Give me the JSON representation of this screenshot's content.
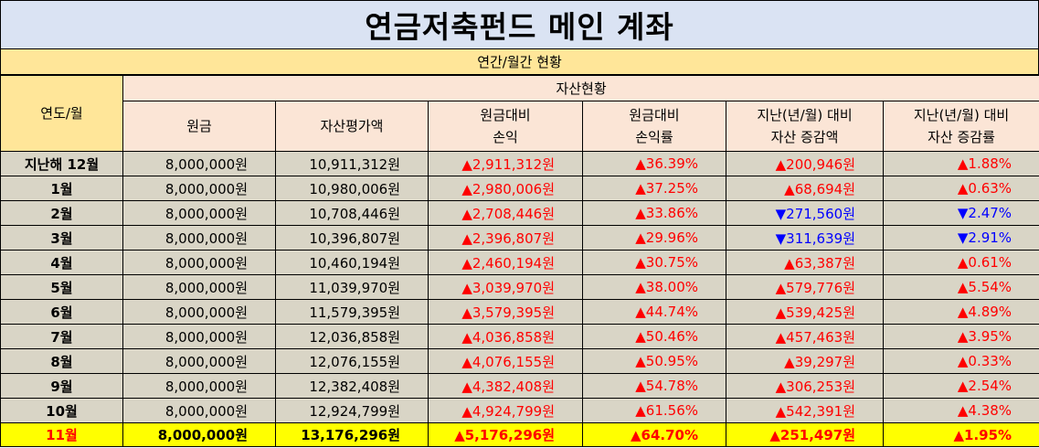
{
  "title": "연금저축펀드 메인 계좌",
  "subtitle": "연간/월간 현황",
  "header": {
    "year_month": "연도/월",
    "asset_status": "자산현황",
    "columns": [
      {
        "line1": "원금",
        "line2": ""
      },
      {
        "line1": "자산평가액",
        "line2": ""
      },
      {
        "line1": "원금대비",
        "line2": "손익"
      },
      {
        "line1": "원금대비",
        "line2": "손익률"
      },
      {
        "line1": "지난(년/월) 대비",
        "line2": "자산 증감액"
      },
      {
        "line1": "지난(년/월) 대비",
        "line2": "자산 증감률"
      }
    ]
  },
  "rows": [
    {
      "label": "지난해 12월",
      "principal": "8,000,000원",
      "valuation": "10,911,312원",
      "pl": "▲2,911,312원",
      "pl_rate": "▲36.39%",
      "change": "▲200,946원",
      "change_rate": "▲1.88%",
      "change_dir": "up"
    },
    {
      "label": "1월",
      "principal": "8,000,000원",
      "valuation": "10,980,006원",
      "pl": "▲2,980,006원",
      "pl_rate": "▲37.25%",
      "change": "▲68,694원",
      "change_rate": "▲0.63%",
      "change_dir": "up"
    },
    {
      "label": "2월",
      "principal": "8,000,000원",
      "valuation": "10,708,446원",
      "pl": "▲2,708,446원",
      "pl_rate": "▲33.86%",
      "change": "▼271,560원",
      "change_rate": "▼2.47%",
      "change_dir": "down"
    },
    {
      "label": "3월",
      "principal": "8,000,000원",
      "valuation": "10,396,807원",
      "pl": "▲2,396,807원",
      "pl_rate": "▲29.96%",
      "change": "▼311,639원",
      "change_rate": "▼2.91%",
      "change_dir": "down"
    },
    {
      "label": "4월",
      "principal": "8,000,000원",
      "valuation": "10,460,194원",
      "pl": "▲2,460,194원",
      "pl_rate": "▲30.75%",
      "change": "▲63,387원",
      "change_rate": "▲0.61%",
      "change_dir": "up"
    },
    {
      "label": "5월",
      "principal": "8,000,000원",
      "valuation": "11,039,970원",
      "pl": "▲3,039,970원",
      "pl_rate": "▲38.00%",
      "change": "▲579,776원",
      "change_rate": "▲5.54%",
      "change_dir": "up"
    },
    {
      "label": "6월",
      "principal": "8,000,000원",
      "valuation": "11,579,395원",
      "pl": "▲3,579,395원",
      "pl_rate": "▲44.74%",
      "change": "▲539,425원",
      "change_rate": "▲4.89%",
      "change_dir": "up"
    },
    {
      "label": "7월",
      "principal": "8,000,000원",
      "valuation": "12,036,858원",
      "pl": "▲4,036,858원",
      "pl_rate": "▲50.46%",
      "change": "▲457,463원",
      "change_rate": "▲3.95%",
      "change_dir": "up"
    },
    {
      "label": "8월",
      "principal": "8,000,000원",
      "valuation": "12,076,155원",
      "pl": "▲4,076,155원",
      "pl_rate": "▲50.95%",
      "change": "▲39,297원",
      "change_rate": "▲0.33%",
      "change_dir": "up"
    },
    {
      "label": "9월",
      "principal": "8,000,000원",
      "valuation": "12,382,408원",
      "pl": "▲4,382,408원",
      "pl_rate": "▲54.78%",
      "change": "▲306,253원",
      "change_rate": "▲2.54%",
      "change_dir": "up"
    },
    {
      "label": "10월",
      "principal": "8,000,000원",
      "valuation": "12,924,799원",
      "pl": "▲4,924,799원",
      "pl_rate": "▲61.56%",
      "change": "▲542,391원",
      "change_rate": "▲4.38%",
      "change_dir": "up"
    },
    {
      "label": "11월",
      "principal": "8,000,000원",
      "valuation": "13,176,296원",
      "pl": "▲5,176,296원",
      "pl_rate": "▲64.70%",
      "change": "▲251,497원",
      "change_rate": "▲1.95%",
      "change_dir": "up",
      "highlight": true
    }
  ],
  "colors": {
    "title_bg": "#dae3f3",
    "subtitle_bg": "#ffe699",
    "header_bg": "#fbe5d6",
    "row_bg": "#d9d5c6",
    "highlight_bg": "#ffff00",
    "up": "#ff0000",
    "down": "#0000ff"
  }
}
